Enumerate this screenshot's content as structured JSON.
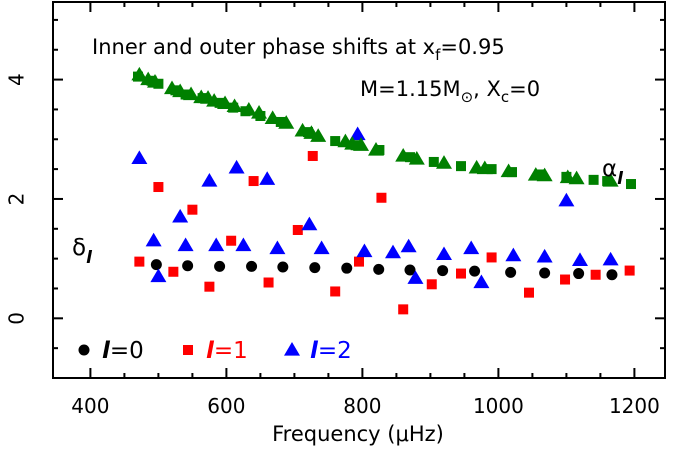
{
  "chart_data": {
    "type": "scatter",
    "title": "Inner and outer phase shifts at x_f=0.95",
    "subtitle": "M=1.15M_⊙, X_c=0",
    "xlabel": "Frequency (μHz)",
    "ylabel": "",
    "xlim": [
      345,
      1245
    ],
    "ylim": [
      -1.0,
      5.3
    ],
    "xticks": [
      "400",
      "600",
      "800",
      "1000",
      "1200"
    ],
    "yticks": [
      "0",
      "2",
      "4"
    ],
    "grid": false,
    "series_labels": {
      "delta": "δ_l",
      "alpha": "α_l"
    },
    "legend": {
      "placement": "bottom-left",
      "entries": [
        {
          "prefix": "l",
          "suffix": "=0",
          "marker": "circle",
          "color": "#000000"
        },
        {
          "prefix": "l",
          "suffix": "=1",
          "marker": "square",
          "color": "#ff0000"
        },
        {
          "prefix": "l",
          "suffix": "=2",
          "marker": "triangle",
          "color": "#0000ff"
        }
      ]
    },
    "series": [
      {
        "marker": "circle",
        "color": "#000000",
        "x": [
          497,
          543,
          590,
          637,
          683,
          730,
          777,
          824,
          870,
          918,
          965,
          1018,
          1068,
          1118,
          1167
        ],
        "y": [
          0.9,
          0.88,
          0.87,
          0.87,
          0.86,
          0.85,
          0.84,
          0.82,
          0.81,
          0.8,
          0.79,
          0.77,
          0.76,
          0.75,
          0.73
        ]
      },
      {
        "marker": "square",
        "color": "#ff0000",
        "x": [
          472,
          500,
          522,
          550,
          575,
          607,
          640,
          662,
          705,
          727,
          760,
          795,
          828,
          860,
          902,
          945,
          990,
          1045,
          1098,
          1143,
          1193
        ],
        "y": [
          0.95,
          2.2,
          0.78,
          1.82,
          0.53,
          1.3,
          2.3,
          0.6,
          1.48,
          2.72,
          0.45,
          0.95,
          2.02,
          0.15,
          0.57,
          0.75,
          1.02,
          0.43,
          0.65,
          0.73,
          0.8
        ]
      },
      {
        "marker": "triangle",
        "color": "#0000ff",
        "x": [
          472,
          493,
          500,
          532,
          540,
          575,
          585,
          615,
          625,
          660,
          675,
          722,
          740,
          793,
          803,
          845,
          868,
          878,
          920,
          960,
          975,
          1022,
          1068,
          1100,
          1120,
          1165
        ],
        "y": [
          2.68,
          1.3,
          0.7,
          1.7,
          1.22,
          2.3,
          1.22,
          2.52,
          1.22,
          2.33,
          1.17,
          1.57,
          1.17,
          3.08,
          1.12,
          1.1,
          1.2,
          0.67,
          1.07,
          1.17,
          0.6,
          1.05,
          1.03,
          1.97,
          0.97,
          0.98
        ]
      },
      {
        "marker": "square",
        "color": "#008000",
        "x": [
          470,
          490,
          500,
          525,
          540,
          565,
          590,
          610,
          628,
          650,
          680,
          720,
          760,
          790,
          825,
          870,
          905,
          945,
          990,
          1020,
          1060,
          1100,
          1140,
          1160,
          1195
        ],
        "y": [
          4.05,
          3.98,
          3.93,
          3.82,
          3.75,
          3.69,
          3.61,
          3.53,
          3.47,
          3.39,
          3.29,
          3.12,
          2.97,
          2.9,
          2.82,
          2.7,
          2.62,
          2.55,
          2.5,
          2.45,
          2.41,
          2.37,
          2.32,
          2.3,
          2.25
        ]
      },
      {
        "marker": "triangle",
        "color": "#008000",
        "x": [
          472,
          485,
          495,
          520,
          532,
          548,
          563,
          573,
          582,
          598,
          612,
          633,
          648,
          668,
          688,
          712,
          725,
          735,
          775,
          785,
          798,
          820,
          860,
          880,
          920,
          968,
          980,
          1015,
          1055,
          1068,
          1102,
          1115,
          1165
        ],
        "y": [
          4.08,
          4.0,
          3.96,
          3.85,
          3.8,
          3.75,
          3.7,
          3.69,
          3.64,
          3.6,
          3.55,
          3.49,
          3.44,
          3.35,
          3.27,
          3.14,
          3.1,
          3.05,
          2.96,
          2.92,
          2.9,
          2.82,
          2.72,
          2.67,
          2.6,
          2.52,
          2.51,
          2.46,
          2.4,
          2.39,
          2.36,
          2.34,
          2.3
        ]
      }
    ]
  }
}
